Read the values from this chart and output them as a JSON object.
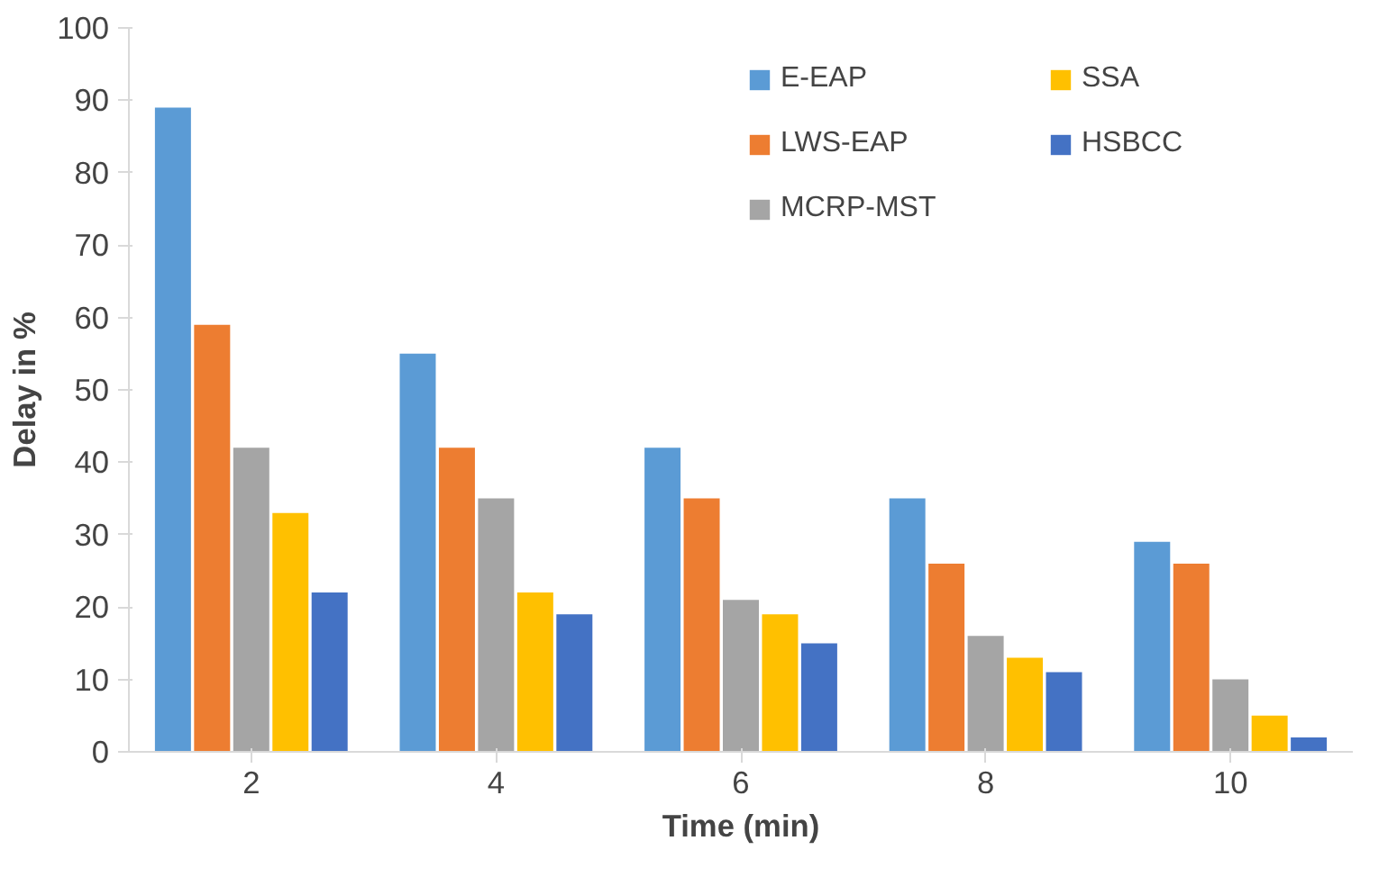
{
  "chart_data": {
    "type": "bar",
    "xlabel": "Time (min)",
    "ylabel": "Delay in %",
    "categories": [
      "2",
      "4",
      "6",
      "8",
      "10"
    ],
    "series": [
      {
        "name": "E-EAP",
        "color": "#5b9bd5",
        "values": [
          89,
          55,
          42,
          35,
          29
        ]
      },
      {
        "name": "LWS-EAP",
        "color": "#ed7d31",
        "values": [
          59,
          42,
          35,
          26,
          26
        ]
      },
      {
        "name": "MCRP-MST",
        "color": "#a5a5a5",
        "values": [
          42,
          35,
          21,
          16,
          10
        ]
      },
      {
        "name": "SSA",
        "color": "#ffc000",
        "values": [
          33,
          22,
          19,
          13,
          5
        ]
      },
      {
        "name": "HSBCC",
        "color": "#4472c4",
        "values": [
          22,
          19,
          15,
          11,
          2
        ]
      }
    ],
    "ylim": [
      0,
      100
    ],
    "yticks": [
      0,
      10,
      20,
      30,
      40,
      50,
      60,
      70,
      80,
      90,
      100
    ],
    "grid": false,
    "legend": "top right"
  }
}
